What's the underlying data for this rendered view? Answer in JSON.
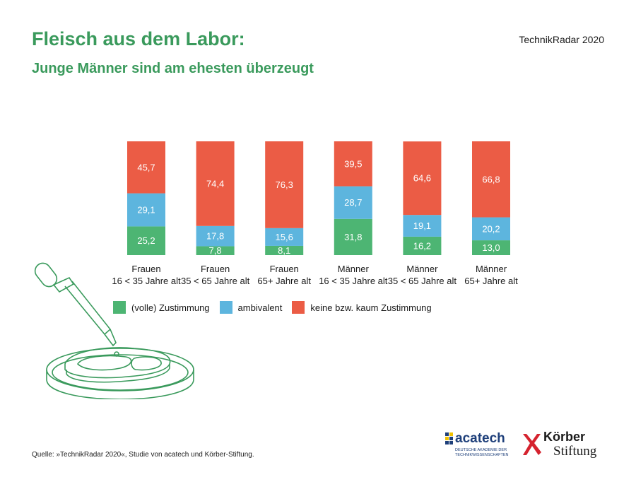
{
  "header": {
    "title": "Fleisch aus dem Labor:",
    "subtitle": "Junge Männer sind am ehesten überzeugt",
    "brand": "TechnikRadar 2020"
  },
  "legend": {
    "items": [
      {
        "label": "(volle) Zustimmung",
        "color": "#4db573"
      },
      {
        "label": "ambivalent",
        "color": "#5db5de"
      },
      {
        "label": "keine bzw. kaum Zustimmung",
        "color": "#eb5c45"
      }
    ]
  },
  "chart_data": {
    "type": "bar",
    "stacked": true,
    "percent": true,
    "categories": [
      [
        "Frauen",
        "16 < 35 Jahre alt"
      ],
      [
        "Frauen",
        "35 < 65 Jahre alt"
      ],
      [
        "Frauen",
        "65+ Jahre alt"
      ],
      [
        "Männer",
        "16 < 35 Jahre alt"
      ],
      [
        "Männer",
        "35 < 65 Jahre alt"
      ],
      [
        "Männer",
        "65+ Jahre alt"
      ]
    ],
    "series": [
      {
        "name": "(volle) Zustimmung",
        "color": "#4db573",
        "values": [
          25.2,
          7.8,
          8.1,
          31.8,
          16.2,
          13.0
        ],
        "labels": [
          "25,2",
          "7,8",
          "8,1",
          "31,8",
          "16,2",
          "13,0"
        ]
      },
      {
        "name": "ambivalent",
        "color": "#5db5de",
        "values": [
          29.1,
          17.8,
          15.6,
          28.7,
          19.1,
          20.2
        ],
        "labels": [
          "29,1",
          "17,8",
          "15,6",
          "28,7",
          "19,1",
          "20,2"
        ]
      },
      {
        "name": "keine bzw. kaum Zustimmung",
        "color": "#eb5c45",
        "values": [
          45.7,
          74.4,
          76.3,
          39.5,
          64.6,
          66.8
        ],
        "labels": [
          "45,7",
          "74,4",
          "76,3",
          "39,5",
          "64,6",
          "66,8"
        ]
      }
    ],
    "ylim": [
      0,
      100
    ]
  },
  "footer": {
    "source": "Quelle: »TechnikRadar 2020«, Studie von acatech und Körber-Stiftung."
  },
  "logos": {
    "acatech_name": "acatech",
    "acatech_sub": "DEUTSCHE AKADEMIE DER TECHNIKWISSENSCHAFTEN",
    "koerber_name": "Körber",
    "koerber_stiftung": "Stiftung"
  }
}
